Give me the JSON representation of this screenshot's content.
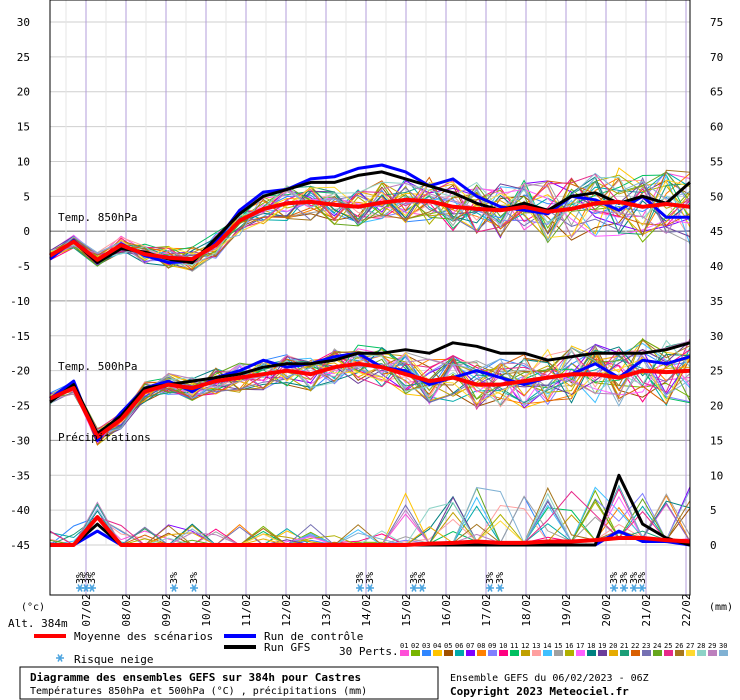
{
  "chart_data": {
    "type": "line",
    "left_axis_ticks": [
      30,
      25,
      20,
      15,
      10,
      5,
      0,
      -5,
      -10,
      -15,
      -20,
      -25,
      -30,
      -35,
      -40,
      -45
    ],
    "right_axis_ticks": [
      75,
      70,
      65,
      60,
      55,
      50,
      45,
      40,
      35,
      30,
      25,
      20,
      15,
      10,
      5,
      0
    ],
    "left_unit": "(°c)",
    "right_unit": "(mm)",
    "x_ticks": [
      "07/02",
      "08/02",
      "09/02",
      "10/02",
      "11/02",
      "12/02",
      "13/02",
      "14/02",
      "15/02",
      "16/02",
      "17/02",
      "18/02",
      "19/02",
      "20/02",
      "21/02",
      "22/02"
    ],
    "panel_labels": {
      "t850": "Temp. 850hPa",
      "t500": "Temp. 500hPa",
      "precip": "Précipitations"
    },
    "altitude": "Alt. 384m",
    "snow_label": "3%",
    "snow_marker_days": [
      0.2,
      0.35,
      0.5,
      2.55,
      3.05,
      7.2,
      7.45,
      8.55,
      8.75,
      10.45,
      10.7,
      13.55,
      13.8,
      14.05,
      14.25
    ],
    "ensemble_member_count": 30,
    "series": [
      {
        "name": "Moyenne des scénarios",
        "color": "#ff0000",
        "t850": [
          -3.5,
          -1.5,
          -4.1,
          -2,
          -3.3,
          -3.8,
          -4,
          -2,
          1.5,
          3.2,
          4,
          4.2,
          3.8,
          3.5,
          4.1,
          4.5,
          4.3,
          3.5,
          3.2,
          3,
          3.5,
          2.8,
          3.2,
          4,
          4.2,
          3.5,
          3.9,
          3.5
        ],
        "t500": [
          -24,
          -22.5,
          -29.5,
          -27,
          -23,
          -22,
          -22.5,
          -21.5,
          -21,
          -20.5,
          -20,
          -20.5,
          -19.5,
          -19,
          -19.5,
          -20.5,
          -21.5,
          -21,
          -22,
          -22,
          -21.5,
          -21,
          -20.5,
          -20.5,
          -21,
          -20,
          -20.2,
          -20
        ],
        "precip": [
          0,
          0,
          4,
          0,
          0,
          0,
          0,
          0,
          0,
          0,
          0,
          0,
          0,
          0,
          0,
          0,
          0.2,
          0.3,
          0.5,
          0.3,
          0.3,
          0.5,
          0.5,
          0.7,
          1,
          1,
          0.7,
          0.5
        ]
      },
      {
        "name": "Run de contrôle",
        "color": "#0000ff",
        "t850": [
          -4,
          -1.3,
          -4.5,
          -1.8,
          -3.5,
          -4.5,
          -4.3,
          -1.5,
          3,
          5.6,
          6,
          7.5,
          7.8,
          9,
          9.5,
          8.5,
          6.5,
          7.5,
          5,
          3.5,
          3,
          2.5,
          5,
          4.5,
          3,
          5,
          2,
          2
        ],
        "t500": [
          -24,
          -21.5,
          -30,
          -26,
          -22.5,
          -21.5,
          -23,
          -21,
          -20,
          -18.5,
          -19.5,
          -19,
          -18,
          -17.5,
          -19.5,
          -20,
          -22,
          -21,
          -20,
          -21,
          -22,
          -21,
          -20.5,
          -19,
          -21,
          -18.5,
          -19,
          -18
        ],
        "precip": [
          0,
          0,
          2,
          0,
          0,
          0,
          0,
          0,
          0,
          0,
          0,
          0,
          0,
          0,
          0,
          0,
          0,
          0,
          0,
          0,
          0,
          0,
          0,
          0,
          2,
          0.5,
          0.5,
          0
        ]
      },
      {
        "name": "Run GFS",
        "color": "#000000",
        "t850": [
          -3.5,
          -1.5,
          -4.5,
          -2.5,
          -3,
          -4,
          -4.5,
          -1,
          2.5,
          5,
          6,
          7,
          7,
          8,
          8.5,
          7.5,
          6.5,
          5.5,
          4,
          3,
          4,
          3,
          5,
          5.5,
          4,
          5,
          4,
          7
        ],
        "t500": [
          -24.5,
          -22,
          -29,
          -26.5,
          -22.5,
          -22,
          -21.5,
          -21,
          -20.5,
          -19.5,
          -19,
          -19,
          -18.5,
          -17.5,
          -17.5,
          -17,
          -17.5,
          -16,
          -16.5,
          -17.5,
          -17.5,
          -18.5,
          -18,
          -17.5,
          -17.5,
          -17.5,
          -17,
          -16
        ],
        "precip": [
          0,
          0,
          3,
          0,
          0,
          0,
          0,
          0,
          0,
          0,
          0,
          0,
          0,
          0,
          0,
          0,
          0,
          0,
          0,
          0,
          0,
          0,
          0,
          0,
          10,
          3,
          1,
          0
        ]
      }
    ],
    "member_palette": [
      "#ff4fd8",
      "#78b400",
      "#2f86ff",
      "#ffc400",
      "#a05000",
      "#00aaaa",
      "#8000ff",
      "#ff8000",
      "#8080ff",
      "#ff0080",
      "#00c060",
      "#c0a000",
      "#ff9f9f",
      "#40c0ff",
      "#a0a0a0",
      "#b0b000",
      "#ff60ff",
      "#008080",
      "#6a3d9a",
      "#e6ab02",
      "#1b9e77",
      "#d95f02",
      "#7570b3",
      "#66a61e",
      "#e7298a",
      "#a6761d",
      "#ffd92f",
      "#8dd3c7",
      "#bc80bd",
      "#80b1d3"
    ]
  },
  "legend": {
    "mean": "Moyenne des scénarios",
    "control": "Run de contrôle",
    "gfs": "Run GFS",
    "perts": "30 Perts.",
    "snow": "Risque neige",
    "member_numbers": [
      "01",
      "02",
      "03",
      "04",
      "05",
      "06",
      "07",
      "08",
      "09",
      "10",
      "11",
      "12",
      "13",
      "14",
      "15",
      "16",
      "17",
      "18",
      "19",
      "20",
      "21",
      "22",
      "23",
      "24",
      "25",
      "26",
      "27",
      "28",
      "29",
      "30"
    ]
  },
  "footer": {
    "title": "Diagramme des ensembles GEFS sur 384h pour Castres",
    "subtitle": "Températures 850hPa et 500hPa (°C) , précipitations (mm)",
    "run_info": "Ensemble GEFS du 06/02/2023 - 06Z",
    "copyright": "Copyright 2023 Meteociel.fr"
  }
}
